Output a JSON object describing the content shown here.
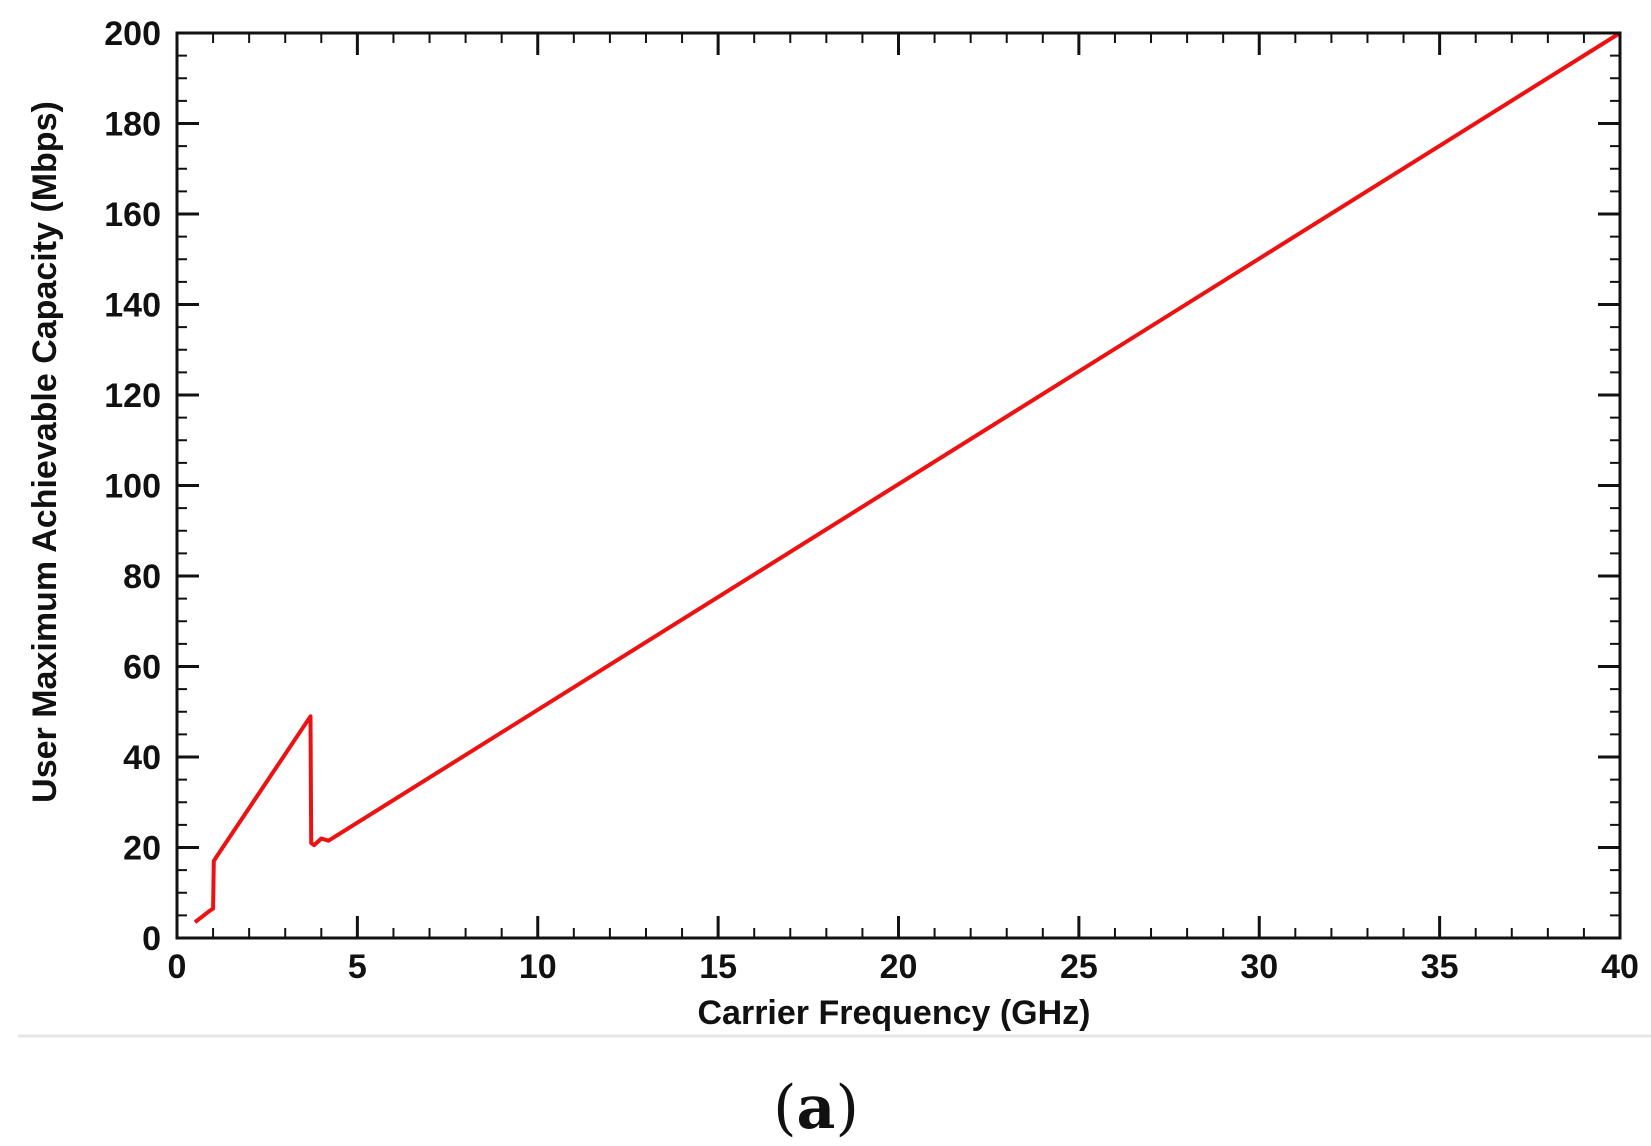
{
  "chart_data": {
    "type": "line",
    "title": "",
    "xlabel": "Carrier Frequency (GHz)",
    "ylabel": "User Maximum Achievable Capacity (Mbps)",
    "xlim": [
      0,
      40
    ],
    "ylim": [
      0,
      200
    ],
    "xticks": [
      0,
      5,
      10,
      15,
      20,
      25,
      30,
      35,
      40
    ],
    "yticks": [
      0,
      20,
      40,
      60,
      80,
      100,
      120,
      140,
      160,
      180,
      200
    ],
    "grid": false,
    "legend": "none",
    "series": [
      {
        "color": "#ee1111",
        "x": [
          0.5,
          0.9,
          1.0,
          1.02,
          1.1,
          3.7,
          3.72,
          3.8,
          4.0,
          4.2,
          40
        ],
        "y": [
          3.5,
          6,
          6.5,
          17,
          18,
          49,
          21,
          20.5,
          22,
          21.5,
          200
        ]
      }
    ],
    "caption_open": "(",
    "caption_letter": "a",
    "caption_close": ")"
  }
}
